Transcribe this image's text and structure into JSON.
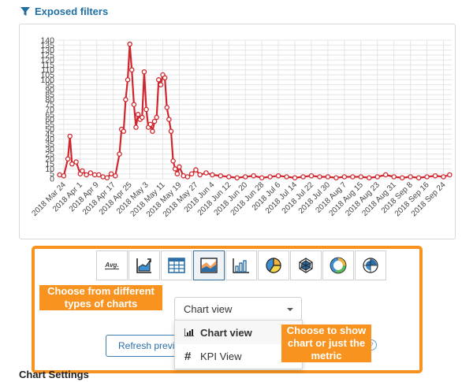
{
  "filters": {
    "label": "Exposed filters",
    "icon": "funnel-icon"
  },
  "chart_data": {
    "type": "line",
    "title": "",
    "xlabel": "",
    "ylabel": "",
    "ylim": [
      0,
      140
    ],
    "yticks": [
      0,
      5,
      10,
      15,
      20,
      25,
      30,
      35,
      40,
      45,
      50,
      55,
      60,
      65,
      70,
      75,
      80,
      85,
      90,
      95,
      100,
      105,
      110,
      115,
      120,
      125,
      130,
      135,
      140
    ],
    "xlim": [
      "2018-03-21",
      "2018-09-28"
    ],
    "xtick_labels": [
      "2018 Mar 24",
      "2018 Apr 1",
      "2018 Apr 9",
      "2018 Apr 17",
      "2018 Apr 25",
      "2018 May 3",
      "2018 May 11",
      "2018 May 19",
      "2018 May 27",
      "2018 Jun 4",
      "2018 Jun 12",
      "2018 Jun 20",
      "2018 Jun 28",
      "2018 Jul 6",
      "2018 Jul 14",
      "2018 Jul 22",
      "2018 Jul 30",
      "2018 Aug 7",
      "2018 Aug 15",
      "2018 Aug 23",
      "2018 Aug 31",
      "2018 Sep 8",
      "2018 Sep 16",
      "2018 Sep 24"
    ],
    "grid": true,
    "line_color": "#d0262e",
    "series": [
      {
        "x": [
          "2018-03-22",
          "2018-03-24",
          "2018-03-26",
          "2018-03-27",
          "2018-03-28",
          "2018-03-30",
          "2018-04-01",
          "2018-04-02",
          "2018-04-04",
          "2018-04-06",
          "2018-04-08",
          "2018-04-10",
          "2018-04-12",
          "2018-04-14",
          "2018-04-16",
          "2018-04-18",
          "2018-04-20",
          "2018-04-21",
          "2018-04-22",
          "2018-04-23",
          "2018-04-24",
          "2018-04-25",
          "2018-04-26",
          "2018-04-27",
          "2018-04-28",
          "2018-04-29",
          "2018-04-30",
          "2018-05-01",
          "2018-05-02",
          "2018-05-03",
          "2018-05-04",
          "2018-05-05",
          "2018-05-06",
          "2018-05-07",
          "2018-05-08",
          "2018-05-09",
          "2018-05-10",
          "2018-05-11",
          "2018-05-12",
          "2018-05-13",
          "2018-05-14",
          "2018-05-15",
          "2018-05-16",
          "2018-05-17",
          "2018-05-18",
          "2018-05-19",
          "2018-05-21",
          "2018-05-23",
          "2018-05-25",
          "2018-05-27",
          "2018-05-29",
          "2018-06-01",
          "2018-06-04",
          "2018-06-08",
          "2018-06-12",
          "2018-06-16",
          "2018-06-20",
          "2018-06-24",
          "2018-06-28",
          "2018-07-02",
          "2018-07-06",
          "2018-07-10",
          "2018-07-14",
          "2018-07-18",
          "2018-07-22",
          "2018-07-26",
          "2018-07-30",
          "2018-08-03",
          "2018-08-07",
          "2018-08-11",
          "2018-08-15",
          "2018-08-19",
          "2018-08-23",
          "2018-08-27",
          "2018-08-31",
          "2018-09-04",
          "2018-09-08",
          "2018-09-12",
          "2018-09-16",
          "2018-09-20",
          "2018-09-24",
          "2018-09-27"
        ],
        "y": [
          4,
          3,
          20,
          43,
          15,
          17,
          5,
          8,
          4,
          6,
          4,
          4,
          2,
          1,
          5,
          3,
          25,
          50,
          48,
          80,
          100,
          136,
          110,
          75,
          52,
          65,
          60,
          62,
          108,
          70,
          52,
          55,
          48,
          58,
          62,
          100,
          95,
          105,
          102,
          72,
          60,
          48,
          18,
          10,
          5,
          12,
          3,
          2,
          5,
          9,
          4,
          6,
          4,
          3,
          2,
          1,
          2,
          3,
          1,
          2,
          3,
          2,
          1,
          2,
          3,
          2,
          2,
          1,
          2,
          2,
          2,
          1,
          2,
          4,
          2,
          1,
          2,
          1,
          2,
          3,
          2,
          4
        ]
      }
    ]
  },
  "view_icons": [
    {
      "name": "average-icon",
      "label": "Avg."
    },
    {
      "name": "kpi-trend-icon"
    },
    {
      "name": "table-icon"
    },
    {
      "name": "area-chart-icon",
      "active": true
    },
    {
      "name": "bar-chart-icon"
    },
    {
      "name": "pie-chart-icon"
    },
    {
      "name": "radar-chart-icon"
    },
    {
      "name": "donut-chart-icon"
    },
    {
      "name": "polar-chart-icon"
    }
  ],
  "annotations": {
    "left": "Choose from different types of charts",
    "right": "Choose to show chart or just the metric"
  },
  "view_select": {
    "value": "Chart view",
    "options": [
      {
        "label": "Chart view",
        "icon": "bar-chart-icon",
        "selected": true
      },
      {
        "label": "KPI View",
        "icon": "hash-icon"
      }
    ]
  },
  "refresh_button": {
    "label": "Refresh previ"
  },
  "section": {
    "chart_settings": "Chart Settings"
  },
  "colors": {
    "accent": "#f7931e",
    "link": "#1f6fa3",
    "series": "#d0262e"
  }
}
